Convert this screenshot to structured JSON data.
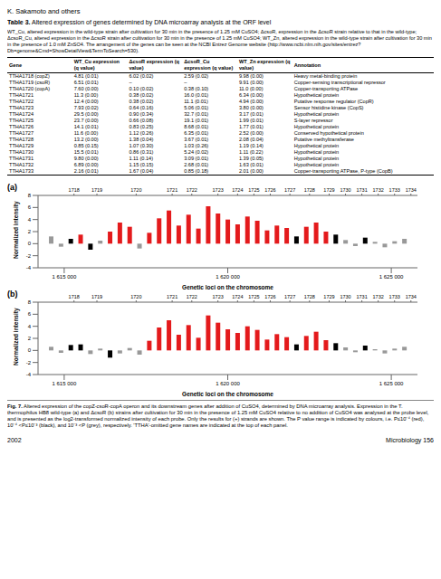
{
  "header": {
    "running_head": "K. Sakamoto and others"
  },
  "table": {
    "title": "Table 3.",
    "title_text": "Altered expression of genes determined by DNA microarray analysis at the ORF level",
    "note": "WT_Cu, altered expression in the wild-type strain after cultivation for 30 min in the presence of 1.25 mM CuSO4; ΔcsoR, expression in the ΔcsoR strain relative to that in the wild-type; ΔcsoR_Cu, altered expression in the ΔcsoR strain after cultivation for 30 min in the presence of 1.25 mM CuSO4; WT_Zn, altered expression in the wild-type strain after cultivation for 30 min in the presence of 1.0 mM ZnSO4. The arrangement of the genes can be seen at the NCBI Entrez Genome website (http://www.ncbi.nlm.nih.gov/sites/entrez?Db=genome&Cmd=ShowDetailView&TermToSearch=530).",
    "columns": [
      "Gene",
      "WT_Cu expression (q value)",
      "ΔcsoR expression (q value)",
      "ΔcsoR_Cu expression (q value)",
      "WT_Zn expression (q value)",
      "Annotation"
    ],
    "rows": [
      [
        "TTHA1718 (copZ)",
        "4.81 (0.01)",
        "6.02 (0.02)",
        "2.59 (0.02)",
        "9.98 (0.00)",
        "Heavy metal-binding protein"
      ],
      [
        "TTHA1719 (csoR)",
        "6.51 (0.01)",
        "–",
        "–",
        "9.91 (0.00)",
        "Copper-sensing transcriptional repressor"
      ],
      [
        "TTHA1720 (copA)",
        "7.60 (0.00)",
        "0.10 (0.02)",
        "0.38 (0.10)",
        "11.0 (0.00)",
        "Copper-transporting ATPase"
      ],
      [
        "TTHA1721",
        "11.3 (0.00)",
        "0.38 (0.02)",
        "16.0 (0.01)",
        "6.34 (0.00)",
        "Hypothetical protein"
      ],
      [
        "TTHA1722",
        "12.4 (0.00)",
        "0.38 (0.02)",
        "11.1 (0.01)",
        "4.94 (0.00)",
        "Putative response regulator (CopR)"
      ],
      [
        "TTHA1723",
        "7.93 (0.02)",
        "0.64 (0.16)",
        "5.06 (0.01)",
        "3.80 (0.00)",
        "Sensor histidine kinase (CopS)"
      ],
      [
        "TTHA1724",
        "29.5 (0.00)",
        "0.90 (0.34)",
        "32.7 (0.01)",
        "3.17 (0.01)",
        "Hypothetical protein"
      ],
      [
        "TTHA1725",
        "23.7 (0.00)",
        "0.66 (0.08)",
        "19.1 (0.01)",
        "1.99 (0.01)",
        "S-layer repressor"
      ],
      [
        "TTHA1726",
        "14.1 (0.01)",
        "0.83 (0.25)",
        "8.68 (0.01)",
        "1.77 (0.01)",
        "Hypothetical protein"
      ],
      [
        "TTHA1727",
        "11.6 (0.00)",
        "1.12 (0.26)",
        "6.35 (0.01)",
        "2.52 (0.00)",
        "Conserved hypothetical protein"
      ],
      [
        "TTHA1728",
        "13.2 (0.00)",
        "1.38 (0.04)",
        "3.67 (0.01)",
        "2.08 (0.04)",
        "Putative methyltransferase"
      ],
      [
        "TTHA1729",
        "0.85 (0.15)",
        "1.07 (0.30)",
        "1.03 (0.26)",
        "1.19 (0.14)",
        "Hypothetical protein"
      ],
      [
        "TTHA1730",
        "15.5 (0.01)",
        "0.86 (0.31)",
        "5.24 (0.02)",
        "1.11 (0.22)",
        "Hypothetical protein"
      ],
      [
        "TTHA1731",
        "9.80 (0.00)",
        "1.11 (0.14)",
        "3.09 (0.01)",
        "1.39 (0.05)",
        "Hypothetical protein"
      ],
      [
        "TTHA1732",
        "6.89 (0.00)",
        "1.15 (0.15)",
        "2.68 (0.01)",
        "1.63 (0.01)",
        "Hypothetical protein"
      ],
      [
        "TTHA1733",
        "2.16 (0.01)",
        "1.67 (0.04)",
        "0.85 (0.18)",
        "2.01 (0.00)",
        "Copper-transporting ATPase, P-type (CopB)"
      ]
    ]
  },
  "chart_data": [
    {
      "type": "bar",
      "title": "(a)",
      "y_label": "Normalized intensity",
      "x_label": "Genetic loci on the chromosome",
      "xlim": [
        1614200,
        1625800
      ],
      "xticks": [
        {
          "value": 1615000,
          "label": "1 615 000"
        },
        {
          "value": 1620000,
          "label": "1 620 000"
        },
        {
          "value": 1625000,
          "label": "1 625 000"
        }
      ],
      "ylim": [
        -4,
        8
      ],
      "yticks": [
        -4,
        -2,
        0,
        2,
        4,
        6,
        8
      ],
      "gene_ticks": [
        {
          "value": 1615300,
          "label": "1718"
        },
        {
          "value": 1616000,
          "label": "1719"
        },
        {
          "value": 1617200,
          "label": "1720"
        },
        {
          "value": 1618300,
          "label": "1721"
        },
        {
          "value": 1618900,
          "label": "1722"
        },
        {
          "value": 1619700,
          "label": "1723"
        },
        {
          "value": 1620300,
          "label": "1724"
        },
        {
          "value": 1620800,
          "label": "1725"
        },
        {
          "value": 1621300,
          "label": "1726"
        },
        {
          "value": 1621900,
          "label": "1727"
        },
        {
          "value": 1622500,
          "label": "1728"
        },
        {
          "value": 1623100,
          "label": "1729"
        },
        {
          "value": 1623600,
          "label": "1730"
        },
        {
          "value": 1624100,
          "label": "1731"
        },
        {
          "value": 1624600,
          "label": "1732"
        },
        {
          "value": 1625100,
          "label": "1733"
        },
        {
          "value": 1625600,
          "label": "1734"
        }
      ],
      "x": [
        1614600,
        1614900,
        1615200,
        1615500,
        1615800,
        1616100,
        1616400,
        1616700,
        1617000,
        1617300,
        1617600,
        1617900,
        1618200,
        1618500,
        1618800,
        1619100,
        1619400,
        1619700,
        1620000,
        1620300,
        1620600,
        1620900,
        1621200,
        1621500,
        1621800,
        1622100,
        1622400,
        1622700,
        1623000,
        1623300,
        1623600,
        1623900,
        1624200,
        1624500,
        1624800,
        1625100,
        1625400
      ],
      "values": [
        1.2,
        -0.5,
        0.8,
        1.5,
        -1.0,
        0.5,
        2.0,
        3.5,
        2.8,
        -0.8,
        1.8,
        4.2,
        5.5,
        3.0,
        4.8,
        2.5,
        6.2,
        5.0,
        4.0,
        3.2,
        4.5,
        3.8,
        2.2,
        3.0,
        2.6,
        1.2,
        2.8,
        3.5,
        2.0,
        1.5,
        0.6,
        -0.4,
        1.0,
        0.3,
        -0.6,
        0.4,
        0.8
      ],
      "colors": [
        "#999999",
        "#999999",
        "#000000",
        "#e41a1c",
        "#000000",
        "#999999",
        "#e41a1c",
        "#e41a1c",
        "#e41a1c",
        "#999999",
        "#e41a1c",
        "#e41a1c",
        "#e41a1c",
        "#e41a1c",
        "#e41a1c",
        "#e41a1c",
        "#e41a1c",
        "#e41a1c",
        "#e41a1c",
        "#e41a1c",
        "#e41a1c",
        "#e41a1c",
        "#e41a1c",
        "#e41a1c",
        "#e41a1c",
        "#000000",
        "#e41a1c",
        "#e41a1c",
        "#e41a1c",
        "#000000",
        "#999999",
        "#999999",
        "#000000",
        "#999999",
        "#999999",
        "#999999",
        "#999999"
      ]
    },
    {
      "type": "bar",
      "title": "(b)",
      "y_label": "Normalized intensity",
      "x_label": "Genetic loci on the chromosome",
      "xlim": [
        1614200,
        1625800
      ],
      "xticks": [
        {
          "value": 1615000,
          "label": "1 615 000"
        },
        {
          "value": 1620000,
          "label": "1 620 000"
        },
        {
          "value": 1625000,
          "label": "1 625 000"
        }
      ],
      "ylim": [
        -4,
        8
      ],
      "yticks": [
        -4,
        -2,
        0,
        2,
        4,
        6,
        8
      ],
      "gene_ticks": [
        {
          "value": 1615300,
          "label": "1718"
        },
        {
          "value": 1616000,
          "label": "1719"
        },
        {
          "value": 1617200,
          "label": "1720"
        },
        {
          "value": 1618300,
          "label": "1721"
        },
        {
          "value": 1618900,
          "label": "1722"
        },
        {
          "value": 1619700,
          "label": "1723"
        },
        {
          "value": 1620300,
          "label": "1724"
        },
        {
          "value": 1620800,
          "label": "1725"
        },
        {
          "value": 1621300,
          "label": "1726"
        },
        {
          "value": 1621900,
          "label": "1727"
        },
        {
          "value": 1622500,
          "label": "1728"
        },
        {
          "value": 1623100,
          "label": "1729"
        },
        {
          "value": 1623600,
          "label": "1730"
        },
        {
          "value": 1624100,
          "label": "1731"
        },
        {
          "value": 1624600,
          "label": "1732"
        },
        {
          "value": 1625100,
          "label": "1733"
        },
        {
          "value": 1625600,
          "label": "1734"
        }
      ],
      "x": [
        1614600,
        1614900,
        1615200,
        1615500,
        1615800,
        1616100,
        1616400,
        1616700,
        1617000,
        1617300,
        1617600,
        1617900,
        1618200,
        1618500,
        1618800,
        1619100,
        1619400,
        1619700,
        1620000,
        1620300,
        1620600,
        1620900,
        1621200,
        1621500,
        1621800,
        1622100,
        1622400,
        1622700,
        1623000,
        1623300,
        1623600,
        1623900,
        1624200,
        1624500,
        1624800,
        1625100,
        1625400
      ],
      "values": [
        0.6,
        -0.4,
        0.9,
        1.0,
        -0.6,
        0.3,
        -1.2,
        -0.5,
        0.4,
        -0.7,
        1.6,
        3.8,
        5.0,
        2.6,
        4.2,
        2.1,
        5.8,
        4.6,
        3.5,
        2.9,
        4.0,
        3.4,
        1.8,
        2.7,
        2.2,
        1.0,
        2.4,
        3.1,
        1.7,
        1.2,
        0.5,
        -0.3,
        0.8,
        0.2,
        -0.5,
        0.3,
        0.6
      ],
      "colors": [
        "#999999",
        "#999999",
        "#000000",
        "#000000",
        "#999999",
        "#999999",
        "#000000",
        "#999999",
        "#999999",
        "#999999",
        "#e41a1c",
        "#e41a1c",
        "#e41a1c",
        "#e41a1c",
        "#e41a1c",
        "#e41a1c",
        "#e41a1c",
        "#e41a1c",
        "#e41a1c",
        "#e41a1c",
        "#e41a1c",
        "#e41a1c",
        "#e41a1c",
        "#e41a1c",
        "#e41a1c",
        "#000000",
        "#e41a1c",
        "#e41a1c",
        "#e41a1c",
        "#000000",
        "#999999",
        "#999999",
        "#000000",
        "#999999",
        "#999999",
        "#999999",
        "#999999"
      ]
    }
  ],
  "figure": {
    "label": "Fig. 7.",
    "caption": "Altered expression of the copZ-csoR-copA operon and its downstream genes after addition of CuSO4, determined by DNA microarray analysis. Expression in the T. thermophilus HB8 wild-type (a) and ΔcsoR (b) strains after cultivation for 30 min in the presence of 1.25 mM CuSO4 relative to no addition of CuSO4 was analysed at the probe level, and is presented as the log2-transformed normalized intensity of each probe. Only the results for (+) strands are shown. The P value range is indicated by colours, i.e. P≤10⁻⁴ (red), 10⁻⁴ <P≤10⁻³ (black), and 10⁻³ <P (grey), respectively. 'TTHA'-omitted gene names are indicated at the top of each panel."
  },
  "footer": {
    "page": "2002",
    "journal": "Microbiology 156"
  }
}
